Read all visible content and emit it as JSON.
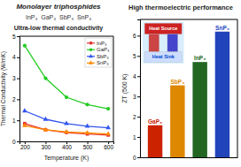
{
  "chart_data": [
    {
      "type": "line",
      "title": "Monolayer triphosphides",
      "subtitle": "Ultra-low thermal conductivity",
      "annotations": [
        "InP₃  GaP₃  SbP₃  SnP₃"
      ],
      "x_label": "Temperature (K)",
      "y_label": "Thermal Conductivity (W/mK)",
      "x": [
        200,
        300,
        400,
        500,
        600
      ],
      "series": [
        {
          "name": "InP₃",
          "color": "#e63232",
          "marker": "square",
          "values": [
            0.85,
            0.55,
            0.42,
            0.35,
            0.3
          ]
        },
        {
          "name": "GaP₃",
          "color": "#22cc22",
          "marker": "circle",
          "values": [
            4.55,
            3.0,
            2.1,
            1.75,
            1.55
          ]
        },
        {
          "name": "SbP₃",
          "color": "#3355ee",
          "marker": "triangle",
          "values": [
            1.45,
            1.05,
            0.85,
            0.72,
            0.65
          ]
        },
        {
          "name": "SnP₃",
          "color": "#ff8800",
          "marker": "triangle",
          "values": [
            0.75,
            0.55,
            0.45,
            0.4,
            0.35
          ]
        }
      ],
      "xlim": [
        175,
        625
      ],
      "xticks": [
        200,
        300,
        400,
        500,
        600
      ],
      "ylim": [
        0,
        5
      ],
      "yticks": [
        0,
        1,
        2,
        3,
        4,
        5
      ],
      "grid": false,
      "legend": "upper-right"
    },
    {
      "type": "bar",
      "title": "High thermoelectric performance",
      "annotations": [
        "Heat Source",
        "Heat Sink"
      ],
      "y_label": "ZT (500 K)",
      "categories": [
        "GaP₃",
        "SbP₃",
        "InP₃",
        "SnP₃"
      ],
      "values": [
        1.58,
        3.55,
        4.7,
        6.2
      ],
      "colors": [
        "#cc2200",
        "#dd8800",
        "#226622",
        "#2244bb"
      ],
      "ylim": [
        0,
        6.8
      ],
      "yticks": [
        0,
        1,
        2,
        3,
        4,
        5,
        6
      ],
      "grid": false,
      "tick_labels": "y"
    }
  ]
}
